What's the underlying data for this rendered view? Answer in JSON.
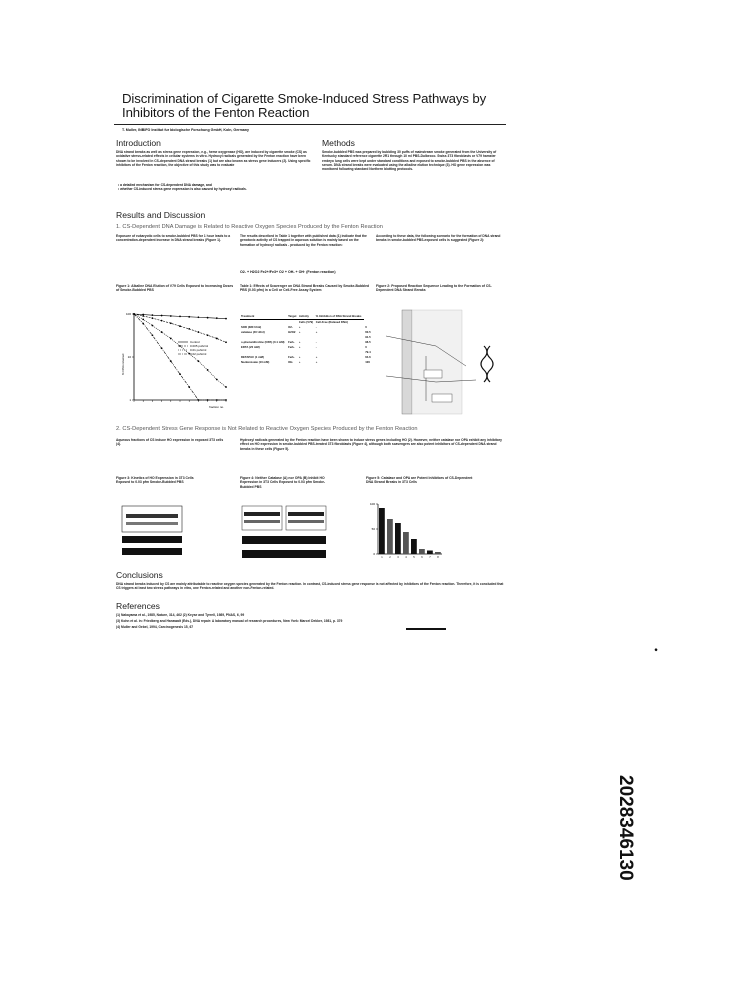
{
  "poster": {
    "title": "Discrimination of Cigarette Smoke-Induced Stress Pathways by Inhibitors of the Fenton Reaction",
    "author": "T. Muller, INBIFO Institut fur biologische Forschung GmbH, Koln, Germany",
    "intro": {
      "heading": "Introduction",
      "text": "DNA strand breaks as well as stress gene expression, e.g., heme oxygenase (HO), are induced by cigarette smoke (CS) as oxidative stress-related effects in cellular systems in vitro. Hydroxyl radicals generated by the Fenton reaction have been shown to be involved in CS-dependent DNA strand breaks (1) but are also known as stress gene inducers (2). Using specific inhibitors of the Fenton reaction, the objective of this study was to evaluate",
      "bullets": [
        "a detailed mechanism for CS-dependent DNA damage, and",
        "whether CS-induced stress gene expression is also caused by hydroxyl radicals."
      ]
    },
    "methods": {
      "heading": "Methods",
      "text": "Smoke-bubbled PBS was prepared by bubbling 30 puffs of mainstream smoke generated from the University of Kentucky standard reference cigarette 2R1 through 10 ml PBS-Dulbecco. Swiss 3T3 fibroblasts or V79 hamster embryo lung cells were kept under standard conditions and exposed to smoke-bubbled PBS in the absence of serum. DNA strand breaks were evaluated using the alkaline elution technique (3). HO gene expression was monitored following standard Northern blotting protocols."
    },
    "results": {
      "heading": "Results and Discussion",
      "sub1": "1. CS-Dependent DNA Damage is Related to Reactive Oxygen Species Produced by the Fenton Reaction",
      "col1": "Exposure of eukaryotic cells to smoke-bubbled PBS for 1 hour leads to a concentration-dependent increase in DNA strand breaks (Figure 1).",
      "col2": "The results described in Table 1 together with published data (1) indicate that the genotoxic activity of CS trapped in aqueous solution is mainly based on the formation of hydroxyl radicals - produced by the Fenton reaction:",
      "equation": "O2- + H2O2  Fe2+/Fe3+  O2 + OH- + OH·  (Fenton reaction)",
      "col3": "According to these data, the following scenario for the formation of DNA strand breaks in smoke-bubbled PBS-exposed cells is suggested (Figure 2):",
      "fig1_caption": "Figure 1: Alkaline DNA Elution of V79 Cells Exposed to Increasing Doses of Smoke-Bubbled PBS",
      "table1_caption": "Table 1: Effects of Scavenger on DNA Strand Breaks Caused by Smoke-Bubbled PBS (0.03 pfm) in a Cell or Cell-Free Assay System",
      "fig2_caption": "Figure 2: Proposed Reaction Sequence Leading to the Formation of CS-Dependent DNA Strand Breaks",
      "sub2": "2. CS-Dependent Stress Gene Response is Not Related to Reactive Oxygen Species Produced by the Fenton Reaction",
      "col1b": "Aqueous fractions of CS induce HO expression in exposed 3T3 cells (4).",
      "col2b": "Hydroxyl radicals generated by the Fenton reaction have been shown to induce stress genes including HO (2). However, neither catalase nor OPA exhibit any inhibitory effect on HO expression in smoke-bubbled PBS-treated 3T3 fibroblasts (Figure 4), although both scavengers are also potent inhibitors of CS-dependent DNA strand breaks in these cells (Figure 5).",
      "fig3_caption": "Figure 3: Kinetics of HO Expression in 3T3 Cells Exposed to 0.03 pfm Smoke-Bubbled PBS",
      "fig4_caption": "Figure 4: Neither Catalase (A) nor OPA (B) Inhibit HO Expression in 3T3 Cells Exposed to 0.03 pfm Smoke-Bubbled PBS",
      "fig5_caption": "Figure 5: Catalase and OPA are Potent Inhibitors of CS-Dependent DNA Strand Breaks in 3T3 Cells"
    },
    "conclusions": {
      "heading": "Conclusions",
      "text": "DNA strand breaks induced by CS are mainly attributable to reactive oxygen species generated by the Fenton reaction. In contrast, CS-induced stress gene response is not affected by inhibitors of the Fenton reaction. Therefore, it is concluded that CS triggers at least two stress pathways in vitro, one Fenton-related and another non-Fenton-related."
    },
    "references": {
      "heading": "References",
      "items": [
        "(1) Nakayama et al., 1985, Nature, 314, 462      (2) Keyse and Tyrrell, 1989, PNAS, 6, 99",
        "(3) Kohn et al. in: Friedberg and Hanawalt (Eds.), DNA repair: A laboratory manual of research procedures, New York: Marcel Dekker, 1981, p. 379",
        "(4) Muller and Gebel, 1994, Carcinogenesis 15, 67"
      ]
    },
    "table1": {
      "headers": [
        "Treatment",
        "Target",
        "Activity",
        "% Inhibition of DNA Strand Breaks"
      ],
      "subheaders": [
        "Cells (V79)",
        "Cell-Free (Relaxed DNA)"
      ],
      "rows": [
        [
          "SOD (380 U/ml)",
          "O2-",
          "+",
          "-",
          "0"
        ],
        [
          "catalase (40 U/ml)",
          "H2O2",
          "+",
          "+",
          "60.5"
        ],
        [
          "",
          "",
          "",
          "",
          "91.5"
        ],
        [
          "o-phenanthroline (OPA) (0.1 mM)",
          "Fe2+",
          "+",
          "-",
          "96.5"
        ],
        [
          "EDTA (20 mM)",
          "Fe2+",
          "+",
          "-",
          "0"
        ],
        [
          "",
          "",
          "",
          "",
          "79.4"
        ],
        [
          "DETAPAC (1 mM)",
          "Fe2+",
          "+",
          "+",
          "64.6"
        ],
        [
          "Na-Benzoate (10 mM)",
          "OH·",
          "+",
          "+",
          "100"
        ]
      ]
    },
    "fig1_legend": [
      "Control",
      "0.005 pufs/ml",
      "0.01 pufs/ml",
      "0.02 pufs/ml"
    ],
    "stamp": "2028346130"
  },
  "chart_data": [
    {
      "type": "line",
      "title": "Figure 1",
      "xlabel": "fraction no.",
      "ylabel": "% DNA retained",
      "x": [
        0,
        1,
        2,
        3,
        4,
        5,
        6,
        7,
        8,
        9,
        10
      ],
      "series": [
        {
          "name": "Control",
          "values": [
            100,
            97,
            94,
            92,
            90,
            88,
            86,
            84,
            82,
            80,
            78
          ]
        },
        {
          "name": "0.005 pufs/ml",
          "values": [
            100,
            90,
            80,
            70,
            61,
            52,
            45,
            38,
            32,
            27,
            22
          ]
        },
        {
          "name": "0.01 pufs/ml",
          "values": [
            100,
            75,
            54,
            38,
            27,
            18,
            12,
            8,
            5,
            3,
            2
          ]
        },
        {
          "name": "0.02 pufs/ml",
          "values": [
            100,
            60,
            32,
            16,
            8,
            4,
            2,
            1,
            1,
            1,
            1
          ]
        }
      ],
      "yscale": "log",
      "ylim": [
        1,
        100
      ]
    },
    {
      "type": "bar",
      "title": "Figure 5",
      "categories": [
        "1",
        "2",
        "3",
        "4",
        "5",
        "6",
        "7",
        "8"
      ],
      "values": [
        92,
        70,
        62,
        44,
        30,
        10,
        7,
        4
      ],
      "ylim": [
        0,
        100
      ]
    }
  ]
}
